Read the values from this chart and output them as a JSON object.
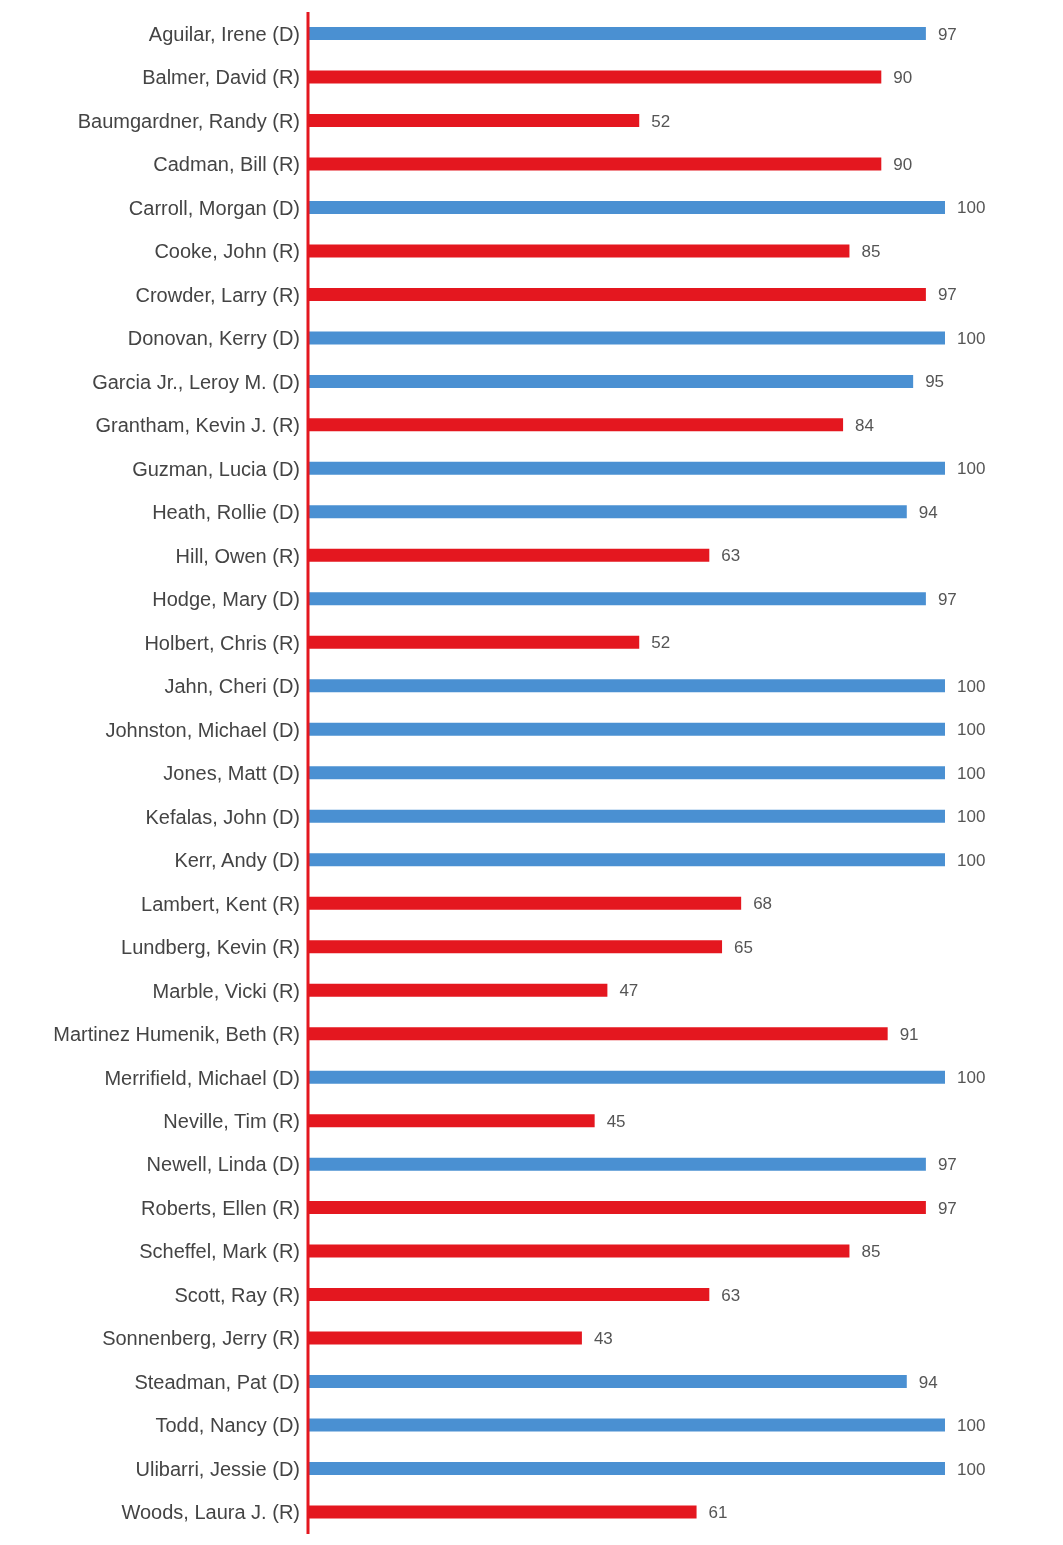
{
  "chart_data": {
    "type": "bar",
    "orientation": "horizontal",
    "categories": [
      "Aguilar, Irene (D)",
      "Balmer, David (R)",
      "Baumgardner, Randy (R)",
      "Cadman, Bill (R)",
      "Carroll, Morgan (D)",
      "Cooke, John (R)",
      "Crowder, Larry (R)",
      "Donovan, Kerry (D)",
      "Garcia Jr., Leroy M. (D)",
      "Grantham, Kevin J. (R)",
      "Guzman, Lucia (D)",
      "Heath, Rollie (D)",
      "Hill, Owen (R)",
      "Hodge, Mary (D)",
      "Holbert, Chris (R)",
      "Jahn, Cheri (D)",
      "Johnston, Michael (D)",
      "Jones, Matt (D)",
      "Kefalas, John (D)",
      "Kerr, Andy (D)",
      "Lambert, Kent (R)",
      "Lundberg, Kevin (R)",
      "Marble, Vicki (R)",
      "Martinez Humenik, Beth (R)",
      "Merrifield, Michael (D)",
      "Neville, Tim (R)",
      "Newell, Linda (D)",
      "Roberts, Ellen (R)",
      "Scheffel, Mark (R)",
      "Scott, Ray (R)",
      "Sonnenberg, Jerry (R)",
      "Steadman, Pat (D)",
      "Todd, Nancy (D)",
      "Ulibarri, Jessie (D)",
      "Woods, Laura J. (R)"
    ],
    "values": [
      97,
      90,
      52,
      90,
      100,
      85,
      97,
      100,
      95,
      84,
      100,
      94,
      63,
      97,
      52,
      100,
      100,
      100,
      100,
      100,
      68,
      65,
      47,
      91,
      100,
      45,
      97,
      97,
      85,
      63,
      43,
      94,
      100,
      100,
      61
    ],
    "colors": [
      "#4a90d2",
      "#e4171f",
      "#e4171f",
      "#e4171f",
      "#4a90d2",
      "#e4171f",
      "#e4171f",
      "#4a90d2",
      "#4a90d2",
      "#e4171f",
      "#4a90d2",
      "#4a90d2",
      "#e4171f",
      "#4a90d2",
      "#e4171f",
      "#4a90d2",
      "#4a90d2",
      "#4a90d2",
      "#4a90d2",
      "#4a90d2",
      "#e4171f",
      "#e4171f",
      "#e4171f",
      "#e4171f",
      "#4a90d2",
      "#e4171f",
      "#4a90d2",
      "#e4171f",
      "#e4171f",
      "#e4171f",
      "#e4171f",
      "#4a90d2",
      "#4a90d2",
      "#4a90d2",
      "#e4171f"
    ],
    "tick_labels": "y",
    "data_labels": true
  }
}
